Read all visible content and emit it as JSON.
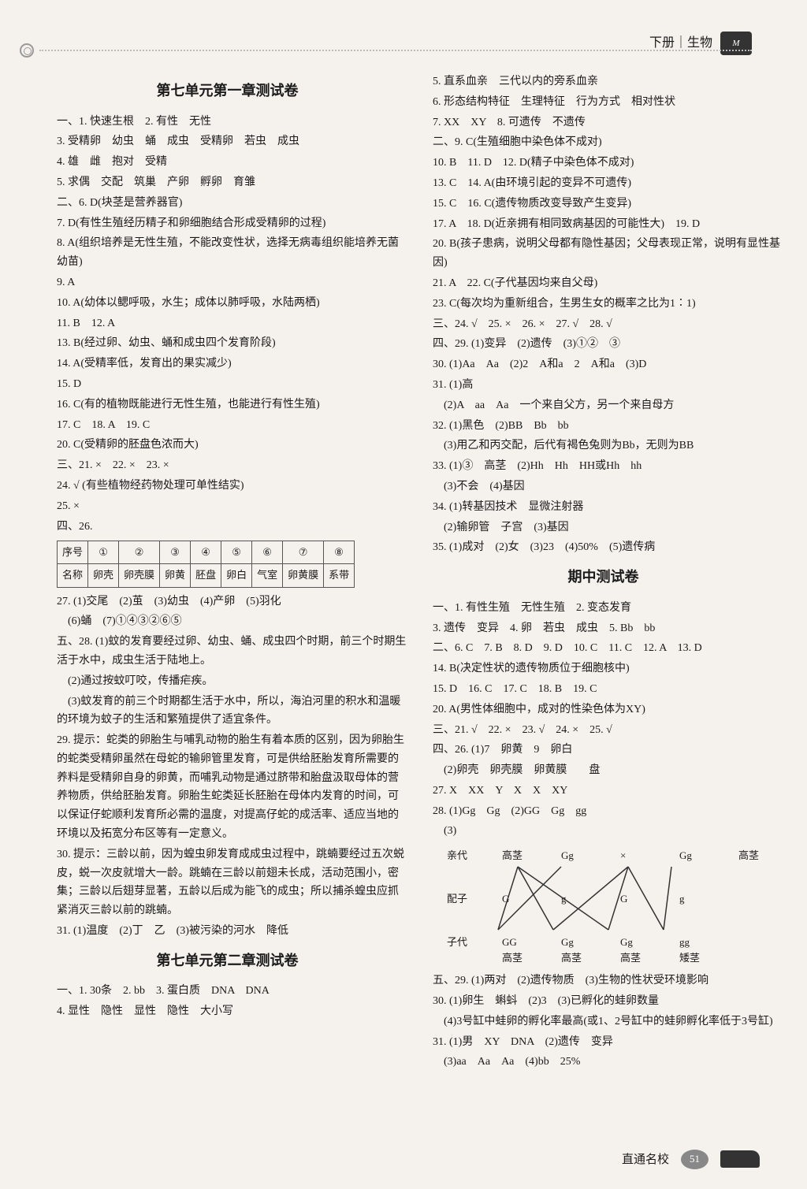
{
  "header": {
    "subject": "下册｜生物",
    "badge": "M"
  },
  "left": {
    "title1": "第七单元第一章测试卷",
    "s1": [
      "一、1. 快速生根　2. 有性　无性",
      "3. 受精卵　幼虫　蛹　成虫　受精卵　若虫　成虫",
      "4. 雄　雌　抱对　受精",
      "5. 求偶　交配　筑巢　产卵　孵卵　育雏",
      "二、6. D(块茎是营养器官)",
      "7. D(有性生殖经历精子和卵细胞结合形成受精卵的过程)",
      "8. A(组织培养是无性生殖，不能改变性状，选择无病毒组织能培养无菌幼苗)",
      "9. A",
      "10. A(幼体以鳃呼吸，水生；成体以肺呼吸，水陆两栖)",
      "11. B　12. A",
      "13. B(经过卵、幼虫、蛹和成虫四个发育阶段)",
      "14. A(受精率低，发育出的果实减少)",
      "15. D",
      "16. C(有的植物既能进行无性生殖，也能进行有性生殖)",
      "17. C　18. A　19. C",
      "20. C(受精卵的胚盘色浓而大)",
      "三、21. ×　22. ×　23. ×",
      "24. √ (有些植物经药物处理可单性结实)",
      "25. ×",
      "四、26."
    ],
    "table": {
      "r1": [
        "序号",
        "①",
        "②",
        "③",
        "④",
        "⑤",
        "⑥",
        "⑦",
        "⑧"
      ],
      "r2": [
        "名称",
        "卵壳",
        "卵壳膜",
        "卵黄",
        "胚盘",
        "卵白",
        "气室",
        "卵黄膜",
        "系带"
      ]
    },
    "s2": [
      "27. (1)交尾　(2)茧　(3)幼虫　(4)产卵　(5)羽化",
      "　(6)蛹　(7)①④③②⑥⑤",
      "五、28. (1)蚊的发育要经过卵、幼虫、蛹、成虫四个时期，前三个时期生活于水中，成虫生活于陆地上。",
      "　(2)通过按蚊叮咬，传播疟疾。",
      "　(3)蚊发育的前三个时期都生活于水中，所以，海泊河里的积水和温暖的环境为蚊子的生活和繁殖提供了适宜条件。",
      "29. 提示：蛇类的卵胎生与哺乳动物的胎生有着本质的区别，因为卵胎生的蛇类受精卵虽然在母蛇的输卵管里发育，可是供给胚胎发育所需要的养料是受精卵自身的卵黄，而哺乳动物是通过脐带和胎盘汲取母体的营养物质，供给胚胎发育。卵胎生蛇类延长胚胎在母体内发育的时间，可以保证仔蛇顺利发育所必需的温度，对提高仔蛇的成活率、适应当地的环境以及拓宽分布区等有一定意义。",
      "30. 提示：三龄以前，因为蝗虫卵发育成成虫过程中，跳蝻要经过五次蜕皮，蜕一次皮就增大一龄。跳蝻在三龄以前翅未长成，活动范围小，密集；三龄以后翅芽显著，五龄以后成为能飞的成虫；所以捕杀蝗虫应抓紧消灭三龄以前的跳蝻。",
      "31. (1)温度　(2)丁　乙　(3)被污染的河水　降低"
    ],
    "title2": "第七单元第二章测试卷",
    "s3": [
      "一、1. 30条　2. bb　3. 蛋白质　DNA　DNA",
      "4. 显性　隐性　显性　隐性　大小写"
    ]
  },
  "right": {
    "s1": [
      "5. 直系血亲　三代以内的旁系血亲",
      "6. 形态结构特征　生理特征　行为方式　相对性状",
      "7. XX　XY　8. 可遗传　不遗传",
      "二、9. C(生殖细胞中染色体不成对)",
      "10. B　11. D　12. D(精子中染色体不成对)",
      "13. C　14. A(由环境引起的变异不可遗传)",
      "15. C　16. C(遗传物质改变导致产生变异)",
      "17. A　18. D(近亲拥有相同致病基因的可能性大)　19. D",
      "20. B(孩子患病，说明父母都有隐性基因；父母表现正常，说明有显性基因)",
      "21. A　22. C(子代基因均来自父母)",
      "23. C(每次均为重新组合，生男生女的概率之比为1∶1)",
      "三、24. √　25. ×　26. ×　27. √　28. √",
      "四、29. (1)变异　(2)遗传　(3)①②　③",
      "30. (1)Aa　Aa　(2)2　A和a　2　A和a　(3)D",
      "31. (1)高",
      "　(2)A　aa　Aa　一个来自父方，另一个来自母方",
      "32. (1)黑色　(2)BB　Bb　bb",
      "　(3)用乙和丙交配，后代有褐色兔则为Bb，无则为BB",
      "33. (1)③　高茎　(2)Hh　Hh　HH或Hh　hh",
      "　(3)不会　(4)基因",
      "34. (1)转基因技术　显微注射器",
      "　(2)输卵管　子宫　(3)基因",
      "35. (1)成对　(2)女　(3)23　(4)50%　(5)遗传病"
    ],
    "title": "期中测试卷",
    "s2": [
      "一、1. 有性生殖　无性生殖　2. 变态发育",
      "3. 遗传　变异　4. 卵　若虫　成虫　5. Bb　bb",
      "二、6. C　7. B　8. D　9. D　10. C　11. C　12. A　13. D",
      "14. B(决定性状的遗传物质位于细胞核中)",
      "15. D　16. C　17. C　18. B　19. C",
      "20. A(男性体细胞中，成对的性染色体为XY)",
      "三、21. √　22. ×　23. √　24. ×　25. √",
      "四、26. (1)7　卵黄　9　卵白",
      "　(2)卵壳　卵壳膜　卵黄膜　　盘",
      "27. X　XX　Y　X　X　XY　",
      "28. (1)Gg　Gg　(2)GG　Gg　gg",
      "　(3)"
    ],
    "cross": {
      "parents": [
        "亲代",
        "高茎",
        "Gg",
        "×",
        "Gg",
        "高茎"
      ],
      "gametes": [
        "配子",
        "G",
        "g",
        "G",
        "g"
      ],
      "offspring": [
        "子代",
        "GG",
        "Gg",
        "Gg",
        "gg"
      ],
      "pheno": [
        "",
        "高茎",
        "高茎",
        "高茎",
        "矮茎"
      ]
    },
    "s3": [
      "五、29. (1)两对　(2)遗传物质　(3)生物的性状受环境影响",
      "30. (1)卵生　蝌蚪　(2)3　(3)已孵化的蛙卵数量",
      "　(4)3号缸中蛙卵的孵化率最高(或1、2号缸中的蛙卵孵化率低于3号缸)",
      "31. (1)男　XY　DNA　(2)遗传　变异",
      "　(3)aa　Aa　Aa　(4)bb　25%"
    ]
  },
  "footer": {
    "text": "直通名校",
    "page": "51"
  }
}
